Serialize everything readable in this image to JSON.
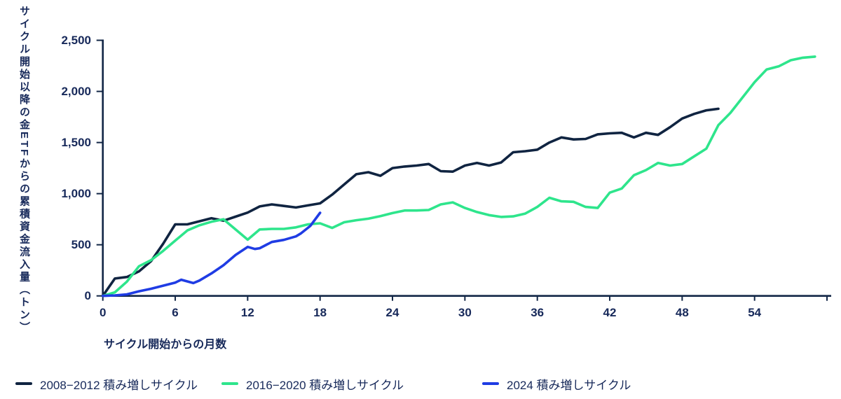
{
  "colors": {
    "axis": "#122646",
    "text": "#17295a",
    "series_2008": "#102441",
    "series_2016": "#2ee58c",
    "series_2024": "#1f3ce4"
  },
  "y_axis": {
    "title": "サイクル開始以降の金ETFからの累積資金流入量（トン）",
    "tick_labels": [
      "0",
      "500",
      "1,000",
      "1,500",
      "2,000",
      "2,500"
    ],
    "tick_values": [
      0,
      500,
      1000,
      1500,
      2000,
      2500
    ]
  },
  "x_axis": {
    "title": "サイクル開始からの月数",
    "tick_labels": [
      "0",
      "6",
      "12",
      "18",
      "24",
      "30",
      "36",
      "42",
      "48",
      "54"
    ],
    "tick_values": [
      0,
      6,
      12,
      18,
      24,
      30,
      36,
      42,
      48,
      54
    ],
    "tick_mark_months": [
      0,
      6,
      12,
      18,
      24,
      30,
      36,
      42,
      48,
      54,
      60
    ]
  },
  "legend": [
    {
      "label": "2008−2012 積み増しサイクル",
      "color": "#102441"
    },
    {
      "label": "2016−2020 積み増しサイクル",
      "color": "#2ee58c"
    },
    {
      "label": "2024 積み増しサイクル",
      "color": "#1f3ce4"
    }
  ],
  "chart_data": {
    "type": "line",
    "title": "",
    "xlabel": "サイクル開始からの月数",
    "ylabel": "サイクル開始以降の金ETFからの累積資金流入量（トン）",
    "xlim": [
      0,
      60
    ],
    "ylim": [
      0,
      2500
    ],
    "grid": false,
    "legend_position": "bottom",
    "axis_color": "#122646",
    "series": [
      {
        "id": "2008-2012",
        "name": "2008−2012 積み増しサイクル",
        "color": "#102441",
        "x": [
          0,
          1,
          2,
          3,
          4,
          5,
          6,
          7,
          8,
          9,
          10,
          11,
          12,
          13,
          14,
          15,
          16,
          17,
          18,
          19,
          20,
          21,
          22,
          23,
          24,
          25,
          26,
          27,
          28,
          29,
          30,
          31,
          32,
          33,
          34,
          35,
          36,
          37,
          38,
          39,
          40,
          41,
          42,
          43,
          44,
          45,
          46,
          47,
          48,
          49,
          50,
          51
        ],
        "y": [
          0,
          170,
          185,
          240,
          340,
          510,
          700,
          700,
          730,
          760,
          735,
          775,
          815,
          875,
          895,
          880,
          865,
          885,
          905,
          990,
          1090,
          1190,
          1210,
          1175,
          1250,
          1265,
          1275,
          1290,
          1220,
          1215,
          1275,
          1300,
          1275,
          1305,
          1405,
          1415,
          1430,
          1500,
          1550,
          1530,
          1535,
          1580,
          1590,
          1595,
          1550,
          1595,
          1575,
          1650,
          1735,
          1780,
          1815,
          1830
        ]
      },
      {
        "id": "2016-2020",
        "name": "2016−2020 積み増しサイクル",
        "color": "#2ee58c",
        "x": [
          0,
          1,
          2,
          3,
          4,
          5,
          6,
          7,
          8,
          9,
          10,
          11,
          12,
          13,
          14,
          15,
          16,
          17,
          18,
          19,
          20,
          21,
          22,
          23,
          24,
          25,
          26,
          27,
          28,
          29,
          30,
          31,
          32,
          33,
          34,
          35,
          36,
          37,
          38,
          39,
          40,
          41,
          42,
          43,
          44,
          45,
          46,
          47,
          48,
          49,
          50,
          51,
          52,
          53,
          54,
          55,
          56,
          57,
          58,
          59
        ],
        "y": [
          0,
          35,
          140,
          290,
          350,
          440,
          540,
          640,
          690,
          725,
          750,
          650,
          550,
          650,
          655,
          655,
          670,
          700,
          710,
          665,
          720,
          740,
          755,
          780,
          810,
          835,
          835,
          840,
          895,
          915,
          860,
          820,
          790,
          772,
          778,
          805,
          870,
          960,
          925,
          920,
          870,
          860,
          1010,
          1050,
          1180,
          1230,
          1300,
          1275,
          1290,
          1365,
          1440,
          1670,
          1790,
          1940,
          2090,
          2215,
          2245,
          2305,
          2330,
          2340
        ]
      },
      {
        "id": "2024",
        "name": "2024 積み増しサイクル",
        "color": "#1f3ce4",
        "x": [
          0,
          1,
          2,
          3,
          4,
          5,
          6,
          6.5,
          7.5,
          8,
          9,
          10,
          11,
          12,
          12.6,
          13,
          14,
          15,
          16,
          16.4,
          17.2,
          18
        ],
        "y": [
          0,
          5,
          15,
          45,
          70,
          100,
          130,
          158,
          125,
          150,
          220,
          300,
          400,
          479,
          459,
          466,
          527,
          548,
          582,
          610,
          685,
          813
        ]
      }
    ]
  }
}
